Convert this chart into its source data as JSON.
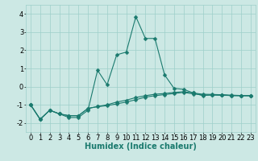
{
  "xlabel": "Humidex (Indice chaleur)",
  "xlim": [
    -0.5,
    23.5
  ],
  "ylim": [
    -2.5,
    4.5
  ],
  "yticks": [
    -2,
    -1,
    0,
    1,
    2,
    3,
    4
  ],
  "xticks": [
    0,
    1,
    2,
    3,
    4,
    5,
    6,
    7,
    8,
    9,
    10,
    11,
    12,
    13,
    14,
    15,
    16,
    17,
    18,
    19,
    20,
    21,
    22,
    23
  ],
  "background_color": "#cce8e4",
  "grid_color": "#9dcfca",
  "line_color": "#1a7a6e",
  "x": [
    0,
    1,
    2,
    3,
    4,
    5,
    6,
    7,
    8,
    9,
    10,
    11,
    12,
    13,
    14,
    15,
    16,
    17,
    18,
    19,
    20,
    21,
    22,
    23
  ],
  "line1": [
    -1.0,
    -1.8,
    -1.3,
    -1.5,
    -1.7,
    -1.7,
    -1.3,
    0.9,
    0.1,
    1.75,
    1.9,
    3.85,
    2.65,
    2.65,
    0.65,
    -0.1,
    -0.15,
    -0.35,
    -0.5,
    -0.45,
    -0.45,
    -0.5,
    -0.5,
    -0.5
  ],
  "line2": [
    -1.0,
    -1.8,
    -1.3,
    -1.5,
    -1.6,
    -1.6,
    -1.2,
    -1.1,
    -1.0,
    -0.85,
    -0.75,
    -0.6,
    -0.5,
    -0.42,
    -0.38,
    -0.32,
    -0.28,
    -0.35,
    -0.42,
    -0.43,
    -0.45,
    -0.47,
    -0.49,
    -0.5
  ],
  "line3": [
    -1.0,
    -1.8,
    -1.3,
    -1.5,
    -1.6,
    -1.6,
    -1.2,
    -1.1,
    -1.05,
    -0.95,
    -0.85,
    -0.72,
    -0.58,
    -0.5,
    -0.44,
    -0.38,
    -0.32,
    -0.4,
    -0.46,
    -0.47,
    -0.48,
    -0.49,
    -0.5,
    -0.5
  ],
  "marker": "D",
  "marker_size": 2.5,
  "line_width": 0.8,
  "font_size_label": 7,
  "font_size_tick": 6
}
